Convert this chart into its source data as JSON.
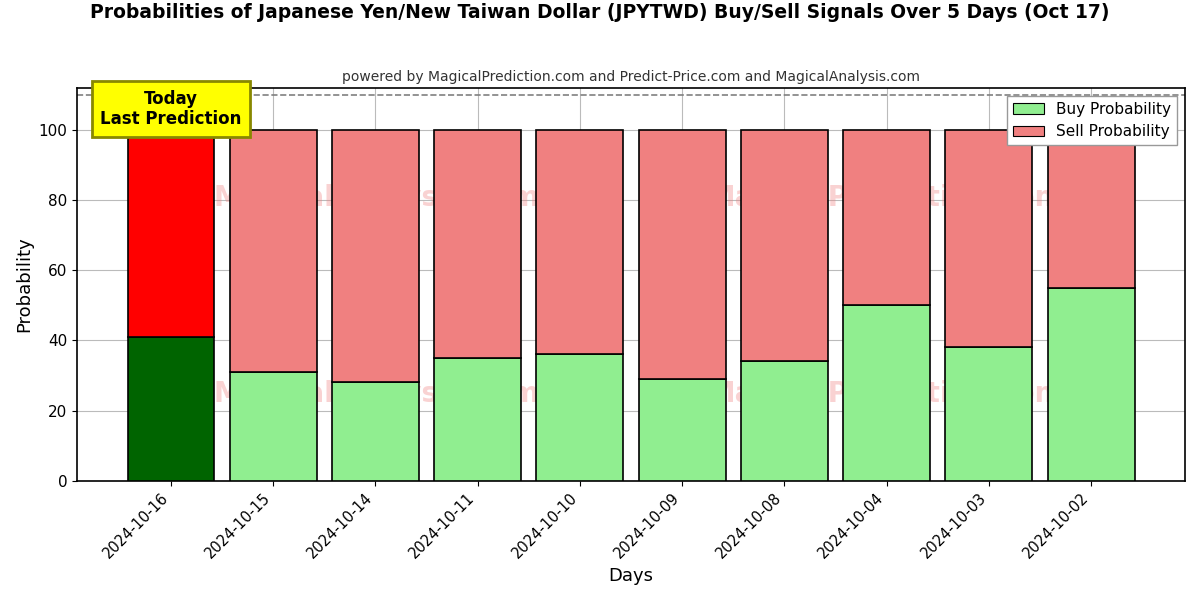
{
  "title": "Probabilities of Japanese Yen/New Taiwan Dollar (JPYTWD) Buy/Sell Signals Over 5 Days (Oct 17)",
  "subtitle": "powered by MagicalPrediction.com and Predict-Price.com and MagicalAnalysis.com",
  "xlabel": "Days",
  "ylabel": "Probability",
  "categories": [
    "2024-10-16",
    "2024-10-15",
    "2024-10-14",
    "2024-10-11",
    "2024-10-10",
    "2024-10-09",
    "2024-10-08",
    "2024-10-04",
    "2024-10-03",
    "2024-10-02"
  ],
  "buy_values": [
    41,
    31,
    28,
    35,
    36,
    29,
    34,
    50,
    38,
    55
  ],
  "sell_values": [
    59,
    69,
    72,
    65,
    64,
    71,
    66,
    50,
    62,
    45
  ],
  "buy_color_today": "#006400",
  "sell_color_today": "#ff0000",
  "buy_color_rest": "#90EE90",
  "sell_color_rest": "#F08080",
  "bar_edge_color": "#000000",
  "today_annotation_bg": "#ffff00",
  "today_annotation_text": "Today\nLast Prediction",
  "ylim": [
    0,
    112
  ],
  "dashed_line_y": 110,
  "legend_buy": "Buy Probability",
  "legend_sell": "Sell Probability",
  "background_color": "#ffffff",
  "grid_color": "#bbbbbb",
  "watermark_color": "#F08080",
  "watermark_alpha": 0.35
}
